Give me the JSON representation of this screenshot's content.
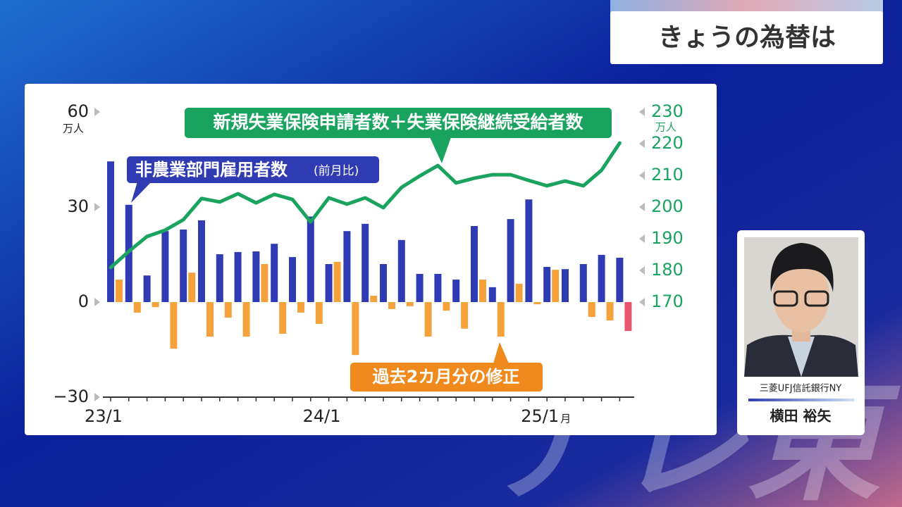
{
  "header": {
    "title": "きょうの為替は"
  },
  "chart_data": {
    "type": "bar",
    "categories": [
      "23/1",
      null,
      null,
      null,
      null,
      null,
      null,
      null,
      null,
      null,
      null,
      null,
      "24/1",
      null,
      null,
      null,
      null,
      null,
      null,
      null,
      null,
      null,
      null,
      null,
      "25/1",
      null,
      null,
      null,
      null
    ],
    "x_unit": "月",
    "y_unit": "万人",
    "y2_unit": "万人",
    "ylim": [
      -30,
      60
    ],
    "yticks": [
      {
        "value": -30,
        "label": "−30"
      },
      0,
      30,
      60
    ],
    "y2lim": [
      140,
      230
    ],
    "y2ticks": [
      170,
      180,
      190,
      200,
      210,
      220,
      230
    ],
    "bar_note": "(前月比)",
    "series": [
      {
        "name": "非農業部門雇用者数",
        "type": "bar",
        "color": "#2f3bb2",
        "values": [
          44.4,
          30.7,
          8.4,
          22.4,
          22.9,
          25.8,
          15.1,
          15.8,
          16,
          18.4,
          14.2,
          27,
          12,
          22.4,
          24.7,
          12,
          19.6,
          8.9,
          8.9,
          7.1,
          24,
          4.7,
          26.2,
          32.4,
          11.1,
          10.4,
          12,
          14.9,
          14
        ]
      },
      {
        "name": "過去2カ月分の修正",
        "type": "bar",
        "color": "#f5a23c",
        "colors": [
          "#f5a23c",
          "#f5a23c",
          "#f5a23c",
          "#f5a23c",
          "#f5a23c",
          "#f5a23c",
          "#f5a23c",
          "#f5a23c",
          "#f5a23c",
          "#f5a23c",
          "#f5a23c",
          "#f5a23c",
          "#f5a23c",
          "#f5a23c",
          "#f5a23c",
          "#f5a23c",
          "#f5a23c",
          "#f5a23c",
          "#f5a23c",
          "#f5a23c",
          "#f5a23c",
          "#f5a23c",
          "#f5a23c",
          "#f5a23c",
          "#f5a23c",
          "#f5a23c",
          "#f5a23c",
          "#f5a23c",
          "#e8536e"
        ],
        "values": [
          7.1,
          -3.3,
          -1.6,
          -14.7,
          9.3,
          -10.9,
          -4.9,
          -10.9,
          12,
          -10,
          -3.3,
          -6.9,
          12.7,
          -16.7,
          2,
          -2.2,
          -1.3,
          -10.9,
          -2.7,
          -8.4,
          7.1,
          -10.9,
          5.8,
          -0.7,
          10.2,
          null,
          -4.7,
          -5.8,
          -9.1
        ]
      },
      {
        "name": "新規失業保険申請者数＋失業保険継続受給者数",
        "type": "line",
        "axis": "y2",
        "color": "#1aa35f",
        "values": [
          180.9,
          186,
          190.7,
          192.7,
          196,
          202.7,
          201.6,
          204.2,
          201.3,
          204,
          202.4,
          195.3,
          202.9,
          200.9,
          202.9,
          199.8,
          206.2,
          209.8,
          213.1,
          207.6,
          209.1,
          210.2,
          210.2,
          208.4,
          206.7,
          208.2,
          206.7,
          211.6,
          220.2
        ]
      }
    ]
  },
  "speaker": {
    "affiliation": "三菱UFJ信託銀行NY",
    "name": "横田 裕矢"
  },
  "watermark": "テレ東"
}
